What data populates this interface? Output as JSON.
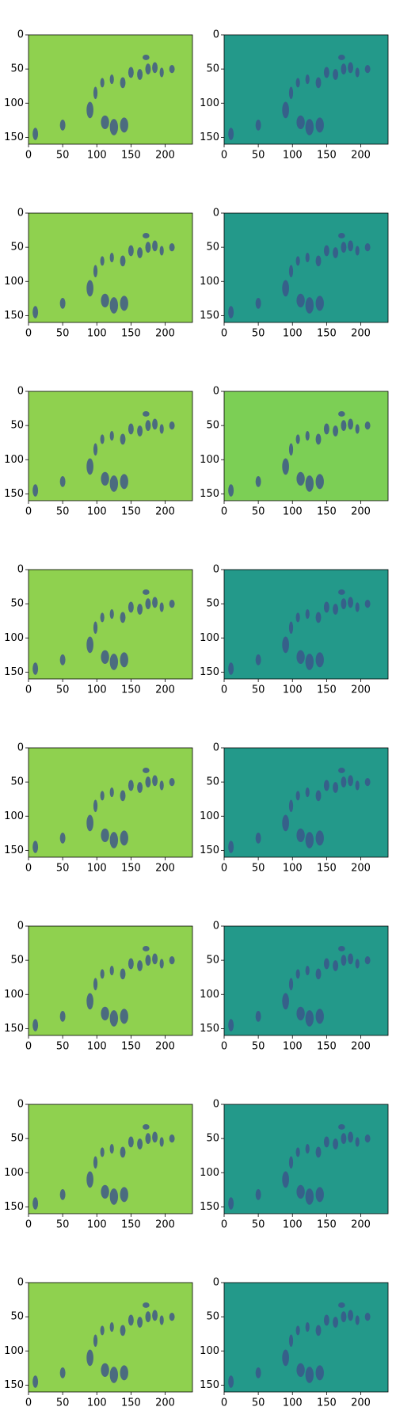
{
  "chart_data": [
    {
      "type": "image",
      "color": "#8fd14f",
      "xlim": [
        0,
        240
      ],
      "ylim": [
        160,
        0
      ],
      "xticks": [
        0,
        50,
        100,
        150,
        200
      ],
      "yticks": [
        0,
        50,
        100,
        150
      ]
    },
    {
      "type": "image",
      "color": "#23998a",
      "xlim": [
        0,
        240
      ],
      "ylim": [
        160,
        0
      ],
      "xticks": [
        0,
        50,
        100,
        150,
        200
      ],
      "yticks": [
        0,
        50,
        100,
        150
      ]
    },
    {
      "type": "image",
      "color": "#8fd14f",
      "xlim": [
        0,
        240
      ],
      "ylim": [
        160,
        0
      ],
      "xticks": [
        0,
        50,
        100,
        150,
        200
      ],
      "yticks": [
        0,
        50,
        100,
        150
      ]
    },
    {
      "type": "image",
      "color": "#23998a",
      "xlim": [
        0,
        240
      ],
      "ylim": [
        160,
        0
      ],
      "xticks": [
        0,
        50,
        100,
        150,
        200
      ],
      "yticks": [
        0,
        50,
        100,
        150
      ]
    },
    {
      "type": "image",
      "color": "#8fd14f",
      "xlim": [
        0,
        240
      ],
      "ylim": [
        160,
        0
      ],
      "xticks": [
        0,
        50,
        100,
        150,
        200
      ],
      "yticks": [
        0,
        50,
        100,
        150
      ]
    },
    {
      "type": "image",
      "color": "#7ccf55",
      "xlim": [
        0,
        240
      ],
      "ylim": [
        160,
        0
      ],
      "xticks": [
        0,
        50,
        100,
        150,
        200
      ],
      "yticks": [
        0,
        50,
        100,
        150
      ]
    },
    {
      "type": "image",
      "color": "#8fd14f",
      "xlim": [
        0,
        240
      ],
      "ylim": [
        160,
        0
      ],
      "xticks": [
        0,
        50,
        100,
        150,
        200
      ],
      "yticks": [
        0,
        50,
        100,
        150
      ]
    },
    {
      "type": "image",
      "color": "#23998a",
      "xlim": [
        0,
        240
      ],
      "ylim": [
        160,
        0
      ],
      "xticks": [
        0,
        50,
        100,
        150,
        200
      ],
      "yticks": [
        0,
        50,
        100,
        150
      ]
    },
    {
      "type": "image",
      "color": "#8fd14f",
      "xlim": [
        0,
        240
      ],
      "ylim": [
        160,
        0
      ],
      "xticks": [
        0,
        50,
        100,
        150,
        200
      ],
      "yticks": [
        0,
        50,
        100,
        150
      ]
    },
    {
      "type": "image",
      "color": "#23998a",
      "xlim": [
        0,
        240
      ],
      "ylim": [
        160,
        0
      ],
      "xticks": [
        0,
        50,
        100,
        150,
        200
      ],
      "yticks": [
        0,
        50,
        100,
        150
      ]
    },
    {
      "type": "image",
      "color": "#8fd14f",
      "xlim": [
        0,
        240
      ],
      "ylim": [
        160,
        0
      ],
      "xticks": [
        0,
        50,
        100,
        150,
        200
      ],
      "yticks": [
        0,
        50,
        100,
        150
      ]
    },
    {
      "type": "image",
      "color": "#23998a",
      "xlim": [
        0,
        240
      ],
      "ylim": [
        160,
        0
      ],
      "xticks": [
        0,
        50,
        100,
        150,
        200
      ],
      "yticks": [
        0,
        50,
        100,
        150
      ]
    },
    {
      "type": "image",
      "color": "#8fd14f",
      "xlim": [
        0,
        240
      ],
      "ylim": [
        160,
        0
      ],
      "xticks": [
        0,
        50,
        100,
        150,
        200
      ],
      "yticks": [
        0,
        50,
        100,
        150
      ]
    },
    {
      "type": "image",
      "color": "#23998a",
      "xlim": [
        0,
        240
      ],
      "ylim": [
        160,
        0
      ],
      "xticks": [
        0,
        50,
        100,
        150,
        200
      ],
      "yticks": [
        0,
        50,
        100,
        150
      ]
    },
    {
      "type": "image",
      "color": "#8fd14f",
      "xlim": [
        0,
        240
      ],
      "ylim": [
        160,
        0
      ],
      "xticks": [
        0,
        50,
        100,
        150,
        200
      ],
      "yticks": [
        0,
        50,
        100,
        150
      ]
    },
    {
      "type": "image",
      "color": "#23998a",
      "xlim": [
        0,
        240
      ],
      "ylim": [
        160,
        0
      ],
      "xticks": [
        0,
        50,
        100,
        150,
        200
      ],
      "yticks": [
        0,
        50,
        100,
        150
      ]
    }
  ]
}
